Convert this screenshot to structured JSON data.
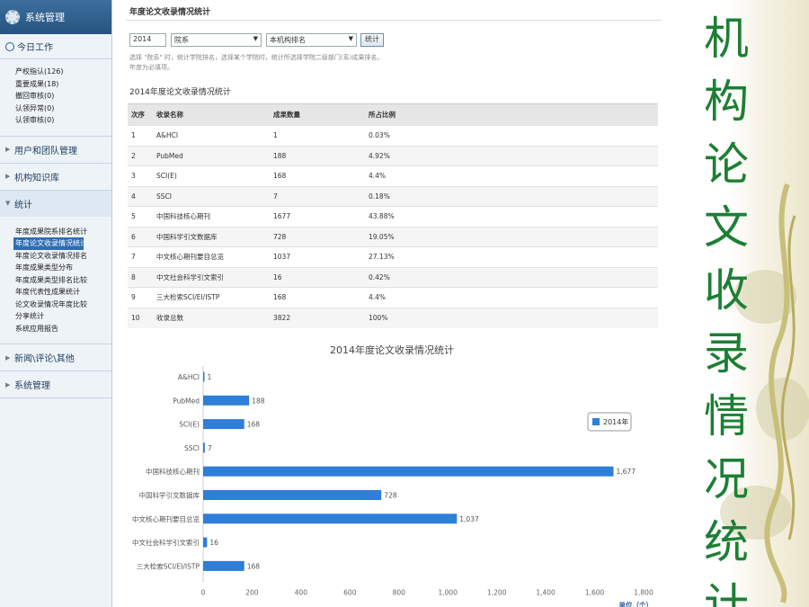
{
  "sidebar": {
    "header": "系统管理",
    "today_title": "今日工作",
    "today_items": [
      "产权指认(126)",
      "重要成果(18)",
      "撤回审核(0)",
      "认领异常(0)",
      "认领审核(0)"
    ],
    "sections": [
      {
        "label": "用户和团队管理"
      },
      {
        "label": "机构知识库"
      },
      {
        "label": "统计"
      }
    ],
    "stat_items": [
      "年度成果院系排名统计",
      "年度论文收录情况统计",
      "年度论文收录情况排名",
      "年度成果类型分布",
      "年度成果类型排名比较",
      "年度代表性成果统计",
      "论文收录情况年度比较",
      "分享统计",
      "系统应用报告"
    ],
    "bottom_sections": [
      {
        "label": "新闻\\评论\\其他"
      },
      {
        "label": "系统管理"
      }
    ]
  },
  "main": {
    "page_title": "年度论文收录情况统计",
    "filters": {
      "year": "2014",
      "dept": "院系",
      "scope": "本机构排名",
      "button": "统计"
    },
    "hint_line1": "选择 \"院系\" 时，统计学院排名，选择某个学院时，统计所选择学院二级部门(系)成果排名。",
    "hint_line2": "年度为必填项。",
    "table_caption": "2014年度论文收录情况统计",
    "table": {
      "headers": [
        "次序",
        "收录名称",
        "成果数量",
        "所占比例"
      ],
      "rows": [
        [
          "1",
          "A&HCI",
          "1",
          "0.03%"
        ],
        [
          "2",
          "PubMed",
          "188",
          "4.92%"
        ],
        [
          "3",
          "SCI(E)",
          "168",
          "4.4%"
        ],
        [
          "4",
          "SSCI",
          "7",
          "0.18%"
        ],
        [
          "5",
          "中国科技核心期刊",
          "1677",
          "43.88%"
        ],
        [
          "6",
          "中国科学引文数据库",
          "728",
          "19.05%"
        ],
        [
          "7",
          "中文核心期刊要目总览",
          "1037",
          "27.13%"
        ],
        [
          "8",
          "中文社会科学引文索引",
          "16",
          "0.42%"
        ],
        [
          "9",
          "三大检索SCI/EI/ISTP",
          "168",
          "4.4%"
        ],
        [
          "10",
          "收录总数",
          "3822",
          "100%"
        ]
      ]
    }
  },
  "chart_data": {
    "type": "bar",
    "orientation": "horizontal",
    "title": "2014年度论文收录情况统计",
    "categories": [
      "A&HCI",
      "PubMed",
      "SCI(E)",
      "SSCI",
      "中国科技核心期刊",
      "中国科学引文数据库",
      "中文核心期刊要目总览",
      "中文社会科学引文索引",
      "三大检索SCI/EI/ISTP"
    ],
    "series": [
      {
        "name": "2014年",
        "values": [
          1,
          188,
          168,
          7,
          1677,
          728,
          1037,
          16,
          168
        ],
        "color": "#2f7ed8"
      }
    ],
    "value_labels": [
      "1",
      "188",
      "168",
      "7",
      "1,677",
      "728",
      "1,037",
      "16",
      "168"
    ],
    "xlim": [
      0,
      1800
    ],
    "ticks": [
      0,
      200,
      400,
      600,
      800,
      1000,
      1200,
      1400,
      1600,
      1800
    ],
    "tick_labels": [
      "0",
      "200",
      "400",
      "600",
      "800",
      "1,000",
      "1,200",
      "1,400",
      "1,600",
      "1,800"
    ],
    "unit_label": "单位（个）",
    "legend_placement": "right",
    "grid": false
  },
  "deco": {
    "vertical_title": [
      "机",
      "构",
      "论",
      "文",
      "收",
      "录",
      "情",
      "况",
      "统",
      "计"
    ],
    "title_color": "#1d7f35"
  }
}
